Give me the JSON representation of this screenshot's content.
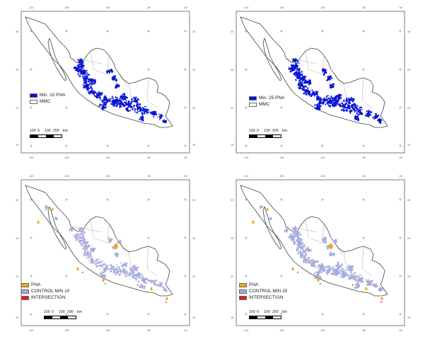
{
  "figure": {
    "panels": [
      {
        "id": "a",
        "legend": [
          {
            "label": "Min. 10 PNA",
            "color": "#0a14d2"
          },
          {
            "label": "MMC",
            "color": "#ffffff"
          }
        ],
        "fill_color": "#0a14d2"
      },
      {
        "id": "b",
        "legend": [
          {
            "label": "Min. 25 PNA",
            "color": "#0a14d2"
          },
          {
            "label": "MMC",
            "color": "#ffffff"
          }
        ],
        "fill_color": "#0a14d2"
      },
      {
        "id": "c",
        "legend": [
          {
            "label": "PNA",
            "color": "#f4a910"
          },
          {
            "label": "CONTROL MIN 10",
            "color": "#a7acdc"
          },
          {
            "label": "INTERSECTION",
            "color": "#e02018"
          }
        ],
        "fill_color": "#a7acdc"
      },
      {
        "id": "d",
        "legend": [
          {
            "label": "PNA",
            "color": "#f4a910"
          },
          {
            "label": "CONTROL MIN 25",
            "color": "#a7acdc"
          },
          {
            "label": "INTERSECTION",
            "color": "#e02018"
          }
        ],
        "fill_color": "#a7acdc"
      }
    ],
    "scale_labels": [
      "100",
      "0",
      "100",
      "200",
      "km"
    ],
    "top_ticks": [
      "-110",
      "-105",
      "-100",
      "-95",
      "-90"
    ],
    "side_ticks": [
      "30",
      "25",
      "20",
      "15"
    ]
  }
}
